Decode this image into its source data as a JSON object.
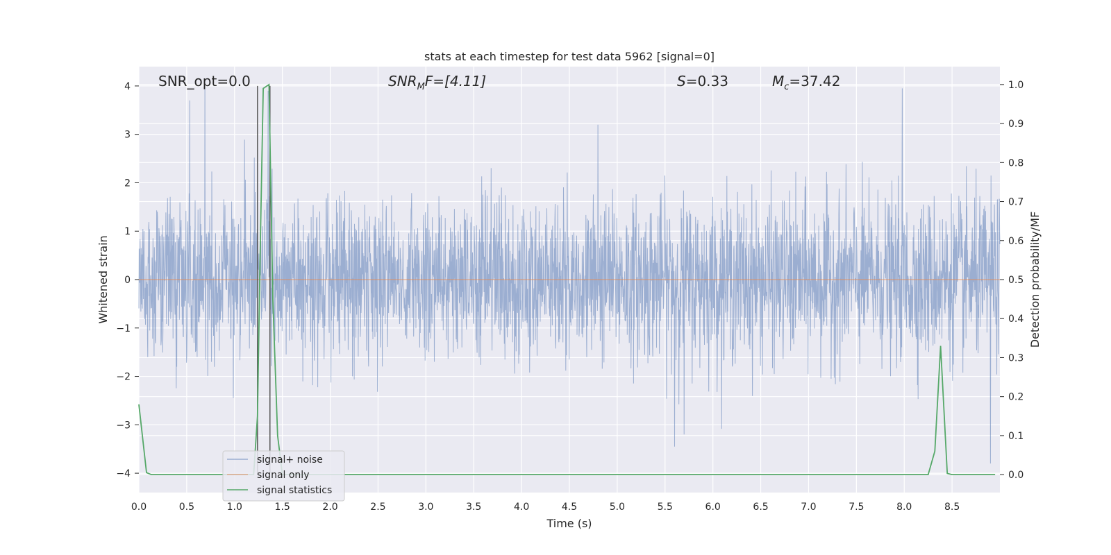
{
  "chart_data": {
    "type": "line",
    "title": "stats at each timestep for test data 5962 [signal=0]",
    "xlabel": "Time (s)",
    "ylabel": "Whitened strain",
    "y2label": "Detection probability/MF",
    "xlim": [
      0,
      9.0
    ],
    "ylim": [
      -4.4,
      4.4
    ],
    "y2lim": [
      -0.046,
      1.046
    ],
    "xticks": [
      "0.0",
      "0.5",
      "1.0",
      "1.5",
      "2.0",
      "2.5",
      "3.0",
      "3.5",
      "4.0",
      "4.5",
      "5.0",
      "5.5",
      "6.0",
      "6.5",
      "7.0",
      "7.5",
      "8.0",
      "8.5"
    ],
    "yticks": [
      "4",
      "3",
      "2",
      "1",
      "0",
      "−1",
      "−2",
      "−3",
      "−4"
    ],
    "y2ticks": [
      "1.0",
      "0.9",
      "0.8",
      "0.7",
      "0.6",
      "0.5",
      "0.4",
      "0.3",
      "0.2",
      "0.1",
      "0.0"
    ],
    "grid": true,
    "legend_position": "lower-left",
    "annotations": {
      "snr_opt": "SNR_opt=0.0",
      "snr_mf_base": "SNR",
      "snr_mf_sub": "M",
      "snr_mf_rest": "F=[4.11]",
      "s_base": "S",
      "s_rest": "=0.33",
      "mc_base": "M",
      "mc_sub": "c",
      "mc_rest": "=37.42"
    },
    "vlines_x": [
      1.24,
      1.37
    ],
    "series": [
      {
        "name": "signal+ noise",
        "color": "#4c72b0",
        "axis": "left",
        "style": "dense noise, std approx 0.8, peaks near ±4",
        "notable_peaks": [
          [
            0.53,
            3.7
          ],
          [
            0.69,
            4.0
          ],
          [
            1.35,
            3.9
          ],
          [
            4.8,
            3.2
          ],
          [
            5.6,
            -3.45
          ],
          [
            5.7,
            -3.2
          ],
          [
            7.98,
            3.95
          ],
          [
            8.9,
            -3.8
          ]
        ]
      },
      {
        "name": "signal only",
        "color": "#dd8452",
        "axis": "left",
        "values_x": [
          0,
          9.0
        ],
        "values_y": [
          0,
          0
        ]
      },
      {
        "name": "signal statistics",
        "color": "#55a868",
        "axis": "right",
        "x": [
          0.0,
          0.08,
          0.13,
          0.5,
          1.0,
          1.2,
          1.24,
          1.27,
          1.3,
          1.36,
          1.4,
          1.45,
          1.5,
          2.0,
          5.0,
          8.0,
          8.25,
          8.32,
          8.38,
          8.45,
          8.5,
          8.95
        ],
        "y": [
          0.18,
          0.005,
          0.0,
          0.0,
          0.0,
          0.0,
          0.15,
          0.6,
          0.99,
          1.0,
          0.45,
          0.1,
          0.0,
          0.0,
          0.0,
          0.0,
          0.0,
          0.06,
          0.33,
          0.003,
          0.0,
          0.0
        ]
      }
    ]
  }
}
